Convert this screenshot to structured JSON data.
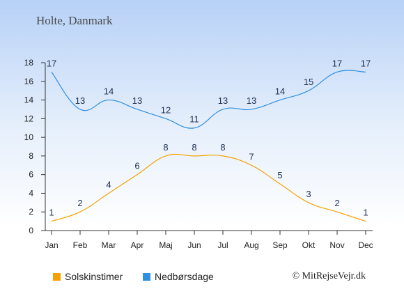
{
  "title": "Holte, Danmark",
  "copyright": "© MitRejseVejr.dk",
  "chart_data": {
    "type": "line",
    "categories": [
      "Jan",
      "Feb",
      "Mar",
      "Apr",
      "Maj",
      "Jun",
      "Jul",
      "Aug",
      "Sep",
      "Okt",
      "Nov",
      "Dec"
    ],
    "ylim": [
      0,
      18
    ],
    "yticks": [
      "0",
      "2",
      "4",
      "6",
      "8",
      "10",
      "12",
      "14",
      "16",
      "18"
    ],
    "grid": false,
    "legend_position": "bottom",
    "series": [
      {
        "name": "Solskinstimer",
        "color": "#f5a000",
        "values": [
          1,
          2,
          4,
          6,
          8,
          8,
          8,
          7,
          5,
          3,
          2,
          1
        ]
      },
      {
        "name": "Nedbørsdage",
        "color": "#2f8fe0",
        "values": [
          17,
          13,
          14,
          13,
          12,
          11,
          13,
          13,
          14,
          15,
          17,
          17
        ]
      }
    ]
  }
}
